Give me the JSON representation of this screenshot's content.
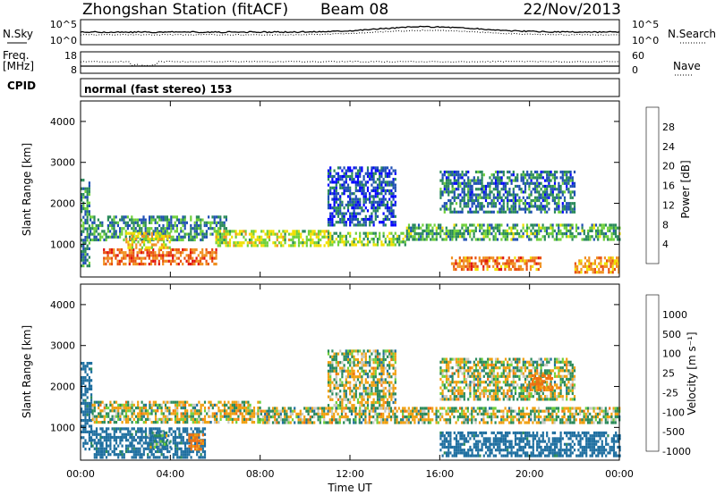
{
  "header": {
    "title": "Zhongshan Station (fitACF)",
    "beam": "Beam 08",
    "date": "22/Nov/2013"
  },
  "status_rows": {
    "nsky_label": "N.Sky",
    "nsearch_label": "N.Search",
    "freq_label_line1": "Freq.",
    "freq_label_line2": "[MHz]",
    "nave_label": "Nave",
    "cpid_label": "CPID",
    "cpid_text": "normal (fast stereo) 153",
    "noise_ticks_left": [
      "10^5",
      "10^0"
    ],
    "noise_ticks_right": [
      "10^5",
      "10^0"
    ],
    "freq_ticks": [
      "18",
      "8"
    ],
    "nave_ticks": [
      "60",
      "0"
    ]
  },
  "axes": {
    "xlabel": "Time UT",
    "ylabel": "Slant Range [km]",
    "x_ticks": [
      "00:00",
      "04:00",
      "08:00",
      "12:00",
      "16:00",
      "20:00",
      "00:00"
    ],
    "y_ticks": [
      "1000",
      "2000",
      "3000",
      "4000"
    ]
  },
  "colorbars": {
    "power": {
      "label": "Power [dB]",
      "ticks": [
        "4",
        "8",
        "12",
        "16",
        "20",
        "24",
        "28"
      ],
      "colors": [
        "#0000ff",
        "#1f4fb4",
        "#2a8a5a",
        "#6fd03a",
        "#f0e000",
        "#f09020",
        "#e85010",
        "#e01010"
      ]
    },
    "velocity": {
      "label": "Velocity [m s⁻¹]",
      "ticks": [
        "1000",
        "500",
        "100",
        "25",
        "-25",
        "-100",
        "-500",
        "-1000"
      ],
      "colors": [
        "#2a4fc0",
        "#1f6fa0",
        "#2a8a5a",
        "#6fd03a",
        "#c8c8c0",
        "#f0a010",
        "#f07010",
        "#e02020"
      ]
    }
  },
  "chart_data": [
    {
      "type": "heatmap",
      "panel": "power",
      "x_range": [
        "00:00",
        "24:00"
      ],
      "y_range_km": [
        200,
        4500
      ],
      "colorbar_label": "Power [dB]",
      "colorbar_range_db": [
        0,
        30
      ],
      "xlabel": "Time UT",
      "ylabel": "Slant Range [km]",
      "regions": [
        {
          "t": [
            0.0,
            0.4
          ],
          "r": [
            500,
            2600
          ],
          "db": 10
        },
        {
          "t": [
            0.4,
            6.5
          ],
          "r": [
            1100,
            1700
          ],
          "db": 10
        },
        {
          "t": [
            1.0,
            6.0
          ],
          "r": [
            500,
            900
          ],
          "db": 25
        },
        {
          "t": [
            2.0,
            4.0
          ],
          "r": [
            950,
            1300
          ],
          "db": 18
        },
        {
          "t": [
            6.0,
            11.0
          ],
          "r": [
            1000,
            1350
          ],
          "db": 16
        },
        {
          "t": [
            11.0,
            14.5
          ],
          "r": [
            1000,
            1300
          ],
          "db": 14
        },
        {
          "t": [
            11.0,
            14.0
          ],
          "r": [
            1500,
            2900
          ],
          "db": 6
        },
        {
          "t": [
            14.5,
            24.0
          ],
          "r": [
            1100,
            1500
          ],
          "db": 12
        },
        {
          "t": [
            16.0,
            22.0
          ],
          "r": [
            1800,
            2800
          ],
          "db": 8
        },
        {
          "t": [
            16.5,
            20.5
          ],
          "r": [
            400,
            700
          ],
          "db": 24
        },
        {
          "t": [
            22.0,
            24.0
          ],
          "r": [
            300,
            700
          ],
          "db": 22
        }
      ]
    },
    {
      "type": "heatmap",
      "panel": "velocity",
      "x_range": [
        "00:00",
        "24:00"
      ],
      "y_range_km": [
        200,
        4500
      ],
      "colorbar_label": "Velocity [m s⁻¹]",
      "xlabel": "Time UT",
      "ylabel": "Slant Range [km]",
      "regions": [
        {
          "t": [
            0.0,
            0.5
          ],
          "r": [
            500,
            2600
          ],
          "v": 200
        },
        {
          "t": [
            0.5,
            8.0
          ],
          "r": [
            1150,
            1650
          ],
          "v": 0
        },
        {
          "t": [
            0.5,
            5.5
          ],
          "r": [
            300,
            1000
          ],
          "v": 200
        },
        {
          "t": [
            3.0,
            4.0
          ],
          "r": [
            500,
            900
          ],
          "v": 80
        },
        {
          "t": [
            4.8,
            5.5
          ],
          "r": [
            450,
            850
          ],
          "v": -150
        },
        {
          "t": [
            8.0,
            24.0
          ],
          "r": [
            1150,
            1500
          ],
          "v": 0
        },
        {
          "t": [
            11.0,
            14.0
          ],
          "r": [
            1500,
            2900
          ],
          "v": 0
        },
        {
          "t": [
            16.0,
            24.0
          ],
          "r": [
            300,
            900
          ],
          "v": 200
        },
        {
          "t": [
            16.0,
            22.0
          ],
          "r": [
            1700,
            2700
          ],
          "v": 0
        },
        {
          "t": [
            20.0,
            21.0
          ],
          "r": [
            1900,
            2300
          ],
          "v": -150
        }
      ]
    }
  ]
}
